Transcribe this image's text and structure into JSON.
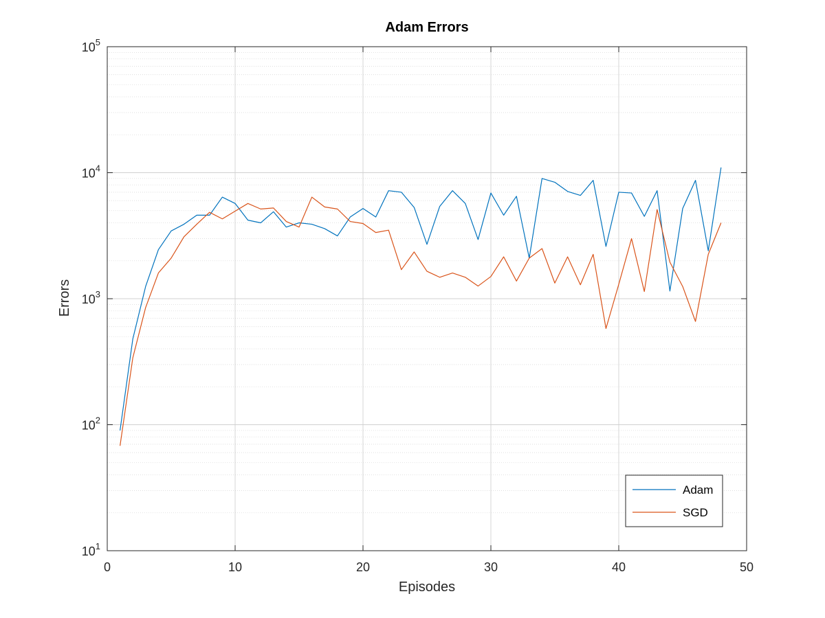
{
  "chart_data": {
    "type": "line",
    "title": "Adam Errors",
    "xlabel": "Episodes",
    "ylabel": "Errors",
    "xlim": [
      0,
      50
    ],
    "ylim": [
      10,
      100000
    ],
    "yscale": "log",
    "grid": true,
    "minor_grid": true,
    "legend_position": "bottom-right",
    "x_ticks": [
      0,
      10,
      20,
      30,
      40,
      50
    ],
    "y_ticks": [
      {
        "base": "10",
        "exp": "1",
        "value": 10
      },
      {
        "base": "10",
        "exp": "2",
        "value": 100
      },
      {
        "base": "10",
        "exp": "3",
        "value": 1000
      },
      {
        "base": "10",
        "exp": "4",
        "value": 10000
      },
      {
        "base": "10",
        "exp": "5",
        "value": 100000
      }
    ],
    "x": [
      1,
      2,
      3,
      4,
      5,
      6,
      7,
      8,
      9,
      10,
      11,
      12,
      13,
      14,
      15,
      16,
      17,
      18,
      19,
      20,
      21,
      22,
      23,
      24,
      25,
      26,
      27,
      28,
      29,
      30,
      31,
      32,
      33,
      34,
      35,
      36,
      37,
      38,
      39,
      40,
      41,
      42,
      43,
      44,
      45,
      46,
      47,
      48
    ],
    "series": [
      {
        "name": "Adam",
        "color": "#0072bd",
        "values": [
          90,
          480,
          1250,
          2450,
          3450,
          3900,
          4600,
          4600,
          6400,
          5700,
          4200,
          4000,
          4900,
          3700,
          4000,
          3900,
          3600,
          3150,
          4450,
          5200,
          4450,
          7200,
          7000,
          5300,
          2700,
          5400,
          7200,
          5700,
          2950,
          6900,
          4600,
          6500,
          2100,
          9000,
          8400,
          7100,
          6600,
          8700,
          2600,
          7000,
          6900,
          4500,
          7200,
          1150,
          5200,
          8700,
          2400,
          11000
        ]
      },
      {
        "name": "SGD",
        "color": "#d95319",
        "values": [
          68,
          340,
          850,
          1600,
          2100,
          3100,
          3900,
          4850,
          4300,
          4950,
          5700,
          5150,
          5250,
          4100,
          3700,
          6400,
          5350,
          5150,
          4100,
          3950,
          3350,
          3500,
          1700,
          2350,
          1650,
          1480,
          1600,
          1480,
          1260,
          1500,
          2150,
          1380,
          2100,
          2500,
          1330,
          2150,
          1290,
          2250,
          580,
          1300,
          3000,
          1140,
          5100,
          1950,
          1250,
          660,
          2250,
          4000
        ]
      }
    ]
  }
}
